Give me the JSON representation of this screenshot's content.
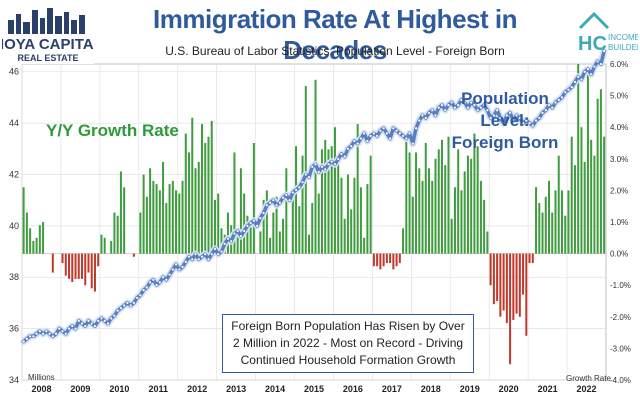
{
  "header": {
    "title": "Immigration Rate At Highest in Decades",
    "subtitle": "U.S. Bureau of Labor Statistics: Population Level - Foreign Born"
  },
  "logos": {
    "left": {
      "line1": "HOYA CAPITAL",
      "line2": "REAL ESTATE"
    },
    "right": {
      "mark": "HC",
      "line1": "INCOME",
      "line2": "BUILDER"
    }
  },
  "annotations": {
    "growth_label": "Y/Y Growth Rate",
    "population_label_line1": "Population Level:",
    "population_label_line2": "Foreign Born",
    "note": "Foreign Born Population Has Risen by Over 2 Million in 2022 - Most on Record - Driving Continued Household Formation Growth",
    "left_unit": "Millions",
    "right_unit": "Growth Rate"
  },
  "colors": {
    "title": "#2f5a9e",
    "positive_bar": "#3f9c3f",
    "negative_bar": "#c0392b",
    "line": "#5a7fbf",
    "growth_label": "#2e9b3a"
  },
  "chart_data": {
    "type": "bar+line",
    "x_ticks": [
      "2008",
      "2009",
      "2010",
      "2011",
      "2012",
      "2013",
      "2014",
      "2015",
      "2016",
      "2017",
      "2018",
      "2019",
      "2020",
      "2021",
      "2022"
    ],
    "left_axis": {
      "label": "Millions",
      "ticks": [
        34,
        36,
        38,
        40,
        42,
        44,
        46
      ],
      "range": [
        34,
        46.3
      ]
    },
    "right_axis": {
      "label": "Growth Rate",
      "ticks": [
        "-4.0%",
        "-3.0%",
        "-2.0%",
        "-1.0%",
        "0.0%",
        "1.0%",
        "2.0%",
        "3.0%",
        "4.0%",
        "5.0%",
        "6.0%"
      ],
      "range": [
        -4.0,
        6.0
      ]
    },
    "series": [
      {
        "name": "Y/Y Growth Rate",
        "kind": "bar",
        "axis": "right",
        "x_start": 2008.0,
        "step": 0.0833,
        "values": [
          2.1,
          1.3,
          0.8,
          0.4,
          0.5,
          0.9,
          1.0,
          0.0,
          0.0,
          -0.6,
          0.0,
          0.0,
          -0.3,
          -0.7,
          -0.8,
          -0.9,
          -0.8,
          -0.8,
          -0.8,
          -1.0,
          -0.6,
          -1.1,
          -1.2,
          -0.4,
          0.6,
          0.5,
          0.0,
          0.4,
          1.3,
          1.2,
          2.6,
          2.1,
          0.0,
          0.0,
          -0.1,
          0.0,
          1.3,
          2.5,
          1.8,
          2.7,
          2.3,
          2.2,
          2.0,
          2.9,
          1.6,
          2.2,
          2.3,
          2.0,
          1.9,
          2.3,
          3.8,
          3.2,
          4.3,
          2.7,
          2.9,
          4.1,
          3.5,
          3.7,
          4.2,
          1.7,
          1.9,
          0.8,
          0.6,
          1.3,
          0.9,
          3.2,
          0.8,
          2.7,
          1.9,
          1.2,
          1.0,
          3.5,
          0.0,
          0.7,
          1.7,
          2.0,
          0.5,
          1.3,
          1.8,
          0.7,
          1.1,
          2.7,
          0.0,
          1.9,
          3.4,
          1.5,
          3.1,
          5.3,
          0.6,
          1.6,
          5.5,
          1.9,
          3.3,
          3.6,
          3.3,
          3.4,
          4.0,
          2.9,
          2.4,
          1.1,
          2.5,
          1.4,
          2.4,
          4.1,
          2.1,
          0.5,
          2.2,
          3.1,
          -0.4,
          -0.4,
          -0.5,
          -0.4,
          -0.3,
          -0.3,
          -0.5,
          -0.4,
          -0.3,
          0.8,
          3.8,
          3.2,
          1.8,
          3.2,
          2.7,
          2.3,
          3.5,
          2.7,
          2.3,
          3.0,
          3.3,
          3.6,
          2.8,
          3.7,
          1.1,
          2.1,
          3.3,
          2.0,
          2.6,
          3.1,
          3.0,
          3.8,
          3.4,
          2.3,
          1.7,
          0.7,
          -1.0,
          -1.6,
          -1.5,
          -2.0,
          -1.8,
          -2.2,
          -3.5,
          -2.1,
          -1.9,
          -2.0,
          -1.3,
          -2.6,
          -0.3,
          -0.3,
          2.1,
          1.6,
          1.3,
          1.8,
          2.3,
          1.3,
          2.0,
          3.1,
          2.0,
          1.2,
          2.0,
          3.7,
          2.8,
          6.0,
          4.0,
          2.9,
          5.7,
          3.6,
          3.1,
          4.9,
          5.2,
          3.7
        ]
      },
      {
        "name": "Population Level: Foreign Born",
        "kind": "line",
        "axis": "left",
        "x_start": 2008.0,
        "step": 0.0833,
        "values": [
          35.5,
          35.6,
          35.7,
          35.7,
          35.8,
          35.9,
          35.8,
          35.9,
          35.8,
          35.7,
          35.8,
          36.0,
          35.9,
          35.8,
          36.0,
          36.1,
          36.0,
          36.3,
          36.2,
          36.1,
          36.3,
          36.2,
          36.1,
          36.3,
          36.4,
          36.3,
          36.2,
          36.4,
          36.5,
          36.7,
          36.8,
          36.9,
          37.0,
          36.9,
          37.0,
          37.2,
          37.3,
          37.5,
          37.6,
          37.8,
          37.9,
          37.7,
          37.8,
          38.0,
          37.9,
          38.1,
          38.3,
          38.5,
          38.3,
          38.4,
          38.6,
          38.8,
          38.7,
          38.9,
          38.7,
          38.8,
          38.9,
          38.7,
          38.9,
          39.1,
          38.9,
          39.0,
          39.3,
          39.5,
          39.4,
          39.7,
          39.8,
          39.6,
          39.8,
          40.0,
          40.1,
          40.2,
          40.0,
          40.3,
          40.5,
          40.8,
          40.9,
          41.0,
          40.8,
          40.9,
          41.1,
          41.2,
          41.0,
          41.3,
          41.4,
          41.5,
          41.7,
          42.0,
          41.9,
          42.3,
          42.4,
          42.1,
          42.3,
          42.2,
          42.4,
          42.5,
          42.4,
          42.6,
          42.8,
          42.7,
          43.0,
          43.1,
          43.3,
          43.2,
          43.4,
          43.6,
          43.3,
          43.5,
          43.6,
          43.5,
          43.7,
          43.8,
          43.6,
          43.4,
          43.8,
          43.7,
          43.6,
          43.5,
          43.4,
          43.6,
          43.2,
          43.8,
          44.1,
          44.3,
          44.2,
          44.4,
          44.5,
          44.3,
          44.6,
          44.7,
          44.5,
          44.7,
          44.8,
          44.6,
          44.7,
          44.9,
          44.8,
          44.6,
          44.8,
          44.7,
          44.5,
          44.6,
          44.7,
          44.5,
          44.2,
          44.3,
          44.5,
          44.2,
          44.0,
          44.3,
          44.4,
          44.1,
          44.3,
          44.2,
          44.0,
          44.1,
          44.0,
          43.9,
          44.1,
          44.2,
          44.4,
          44.5,
          44.7,
          44.6,
          44.8,
          44.9,
          45.0,
          45.2,
          45.3,
          45.4,
          45.6,
          45.8,
          45.7,
          46.0,
          46.1,
          45.9,
          46.2,
          46.4,
          46.3,
          46.8
        ]
      }
    ],
    "grid": true,
    "legend": "none"
  }
}
